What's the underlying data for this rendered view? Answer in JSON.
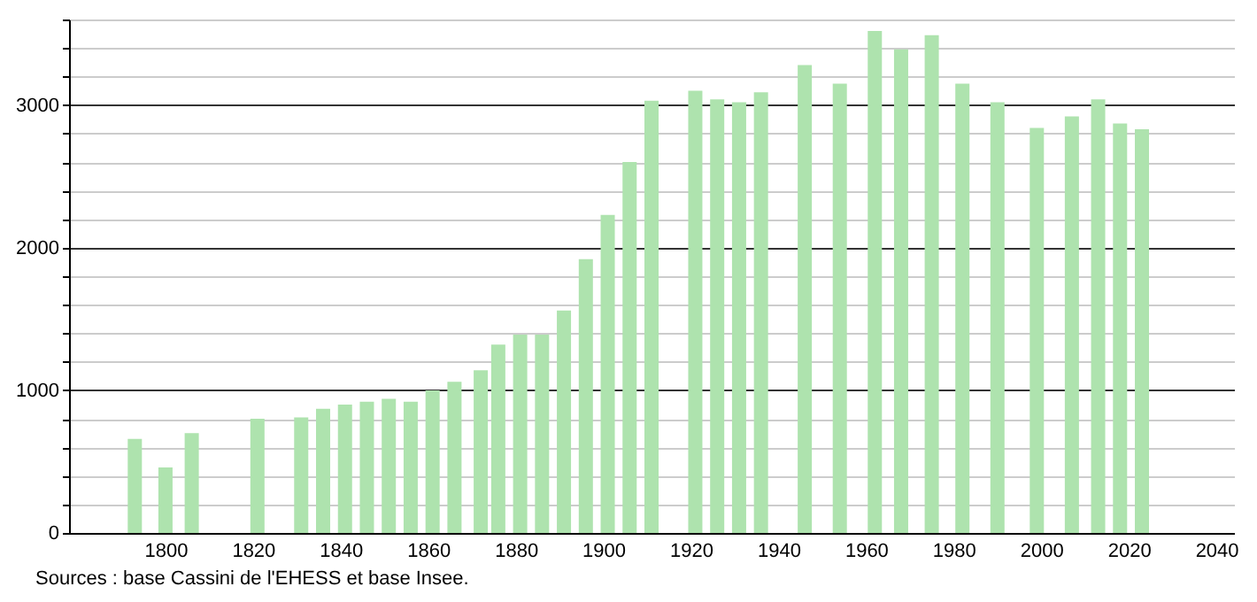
{
  "chart_data": {
    "type": "bar",
    "annotations": [
      "Sources : base Cassini de l'EHESS et base Insee."
    ],
    "x": [
      1793,
      1800,
      1806,
      1821,
      1831,
      1836,
      1841,
      1846,
      1851,
      1856,
      1861,
      1866,
      1872,
      1876,
      1881,
      1886,
      1891,
      1896,
      1901,
      1906,
      1911,
      1921,
      1926,
      1931,
      1936,
      1946,
      1954,
      1962,
      1968,
      1975,
      1982,
      1990,
      1999,
      2007,
      2013,
      2018,
      2023
    ],
    "values": [
      660,
      460,
      700,
      800,
      810,
      870,
      900,
      920,
      940,
      920,
      1000,
      1060,
      1140,
      1320,
      1390,
      1390,
      1560,
      1920,
      2230,
      2600,
      3030,
      3100,
      3040,
      3020,
      3090,
      3280,
      3150,
      3520,
      3390,
      3490,
      3150,
      3020,
      2840,
      2920,
      3040,
      2870,
      2830
    ],
    "color": "#aee3ae",
    "xlim": [
      1780,
      2042
    ],
    "xticks": [
      1800,
      1820,
      1840,
      1860,
      1880,
      1900,
      1920,
      1940,
      1960,
      1980,
      2000,
      2020,
      2040
    ],
    "ylim": [
      0,
      3600
    ],
    "yticks": [
      0,
      {
        "value": 200,
        "label": null
      },
      {
        "value": 400,
        "label": null
      },
      {
        "value": 600,
        "label": null
      },
      {
        "value": 800,
        "label": null
      },
      1000,
      {
        "value": 1200,
        "label": null
      },
      {
        "value": 1400,
        "label": null
      },
      {
        "value": 1600,
        "label": null
      },
      {
        "value": 1800,
        "label": null
      },
      2000,
      {
        "value": 2200,
        "label": null
      },
      {
        "value": 2400,
        "label": null
      },
      {
        "value": 2600,
        "label": null
      },
      {
        "value": 2800,
        "label": null
      },
      3000,
      {
        "value": 3200,
        "label": null
      },
      {
        "value": 3400,
        "label": null
      },
      {
        "value": 3600,
        "label": null
      }
    ],
    "grid": "y"
  }
}
